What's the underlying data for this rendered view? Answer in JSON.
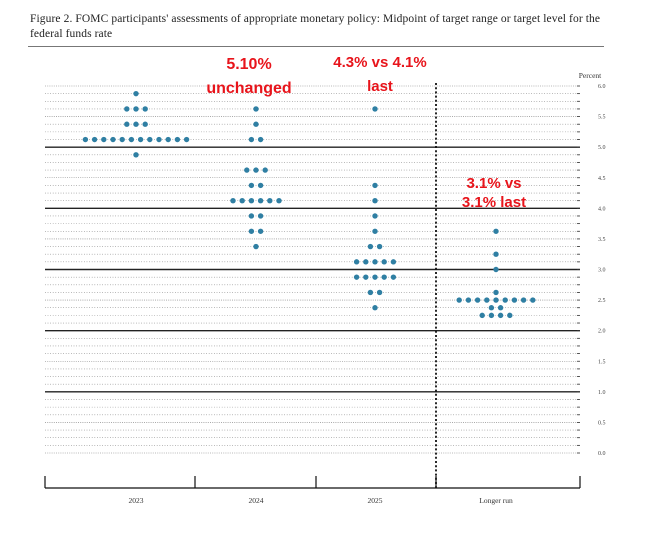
{
  "figure_caption": "Figure 2.  FOMC participants' assessments of appropriate monetary policy: Midpoint of target range or target level for the federal funds rate",
  "chart_data": {
    "type": "scatter",
    "title": "",
    "ylabel": "Percent",
    "ylim": [
      0,
      6
    ],
    "ystep": 0.125,
    "yticks": [
      0.0,
      0.5,
      1.0,
      1.5,
      2.0,
      2.5,
      3.0,
      3.5,
      4.0,
      4.5,
      5.0,
      5.5,
      6.0
    ],
    "ytick_labels": [
      "0.0",
      "0.5",
      "1.0",
      "1.5",
      "2.0",
      "2.5",
      "3.0",
      "3.5",
      "4.0",
      "4.5",
      "5.0",
      "5.5",
      "6.0"
    ],
    "categories": [
      "2023",
      "2024",
      "2025",
      "Longer run"
    ],
    "dots": [
      {
        "category": "2023",
        "points": [
          {
            "y": 5.875,
            "count": 1
          },
          {
            "y": 5.625,
            "count": 3
          },
          {
            "y": 5.375,
            "count": 3
          },
          {
            "y": 5.125,
            "count": 12
          },
          {
            "y": 4.875,
            "count": 1
          }
        ]
      },
      {
        "category": "2024",
        "points": [
          {
            "y": 5.625,
            "count": 1
          },
          {
            "y": 5.375,
            "count": 1
          },
          {
            "y": 5.125,
            "count": 2
          },
          {
            "y": 4.625,
            "count": 3
          },
          {
            "y": 4.375,
            "count": 2
          },
          {
            "y": 4.125,
            "count": 6
          },
          {
            "y": 3.875,
            "count": 2
          },
          {
            "y": 3.625,
            "count": 2
          },
          {
            "y": 3.375,
            "count": 1
          }
        ]
      },
      {
        "category": "2025",
        "points": [
          {
            "y": 5.625,
            "count": 1
          },
          {
            "y": 4.375,
            "count": 1
          },
          {
            "y": 4.125,
            "count": 1
          },
          {
            "y": 3.875,
            "count": 1
          },
          {
            "y": 3.625,
            "count": 1
          },
          {
            "y": 3.375,
            "count": 2
          },
          {
            "y": 3.125,
            "count": 5
          },
          {
            "y": 2.875,
            "count": 5
          },
          {
            "y": 2.625,
            "count": 2
          },
          {
            "y": 2.375,
            "count": 1
          }
        ]
      },
      {
        "category": "Longer run",
        "points": [
          {
            "y": 3.625,
            "count": 1
          },
          {
            "y": 3.25,
            "count": 1
          },
          {
            "y": 3.0,
            "count": 1
          },
          {
            "y": 2.625,
            "count": 1
          },
          {
            "y": 2.5,
            "count": 9
          },
          {
            "y": 2.375,
            "count": 2
          },
          {
            "y": 2.25,
            "count": 4
          }
        ]
      }
    ],
    "annotations": [
      {
        "lines": [
          "5.10%",
          "unchanged"
        ],
        "category": "2024"
      },
      {
        "lines": [
          "4.3% vs 4.1%",
          "last"
        ],
        "category": "2025"
      },
      {
        "lines": [
          "3.1% vs",
          "3.1% last"
        ],
        "category": "Longer run"
      }
    ],
    "colors": {
      "dot": "#2f7fa3",
      "annotation": "#e8141b",
      "major_line": "#222222",
      "minor_line": "#777777"
    },
    "grid": true,
    "divider": "dotted vertical line between 2025 and Longer run"
  }
}
